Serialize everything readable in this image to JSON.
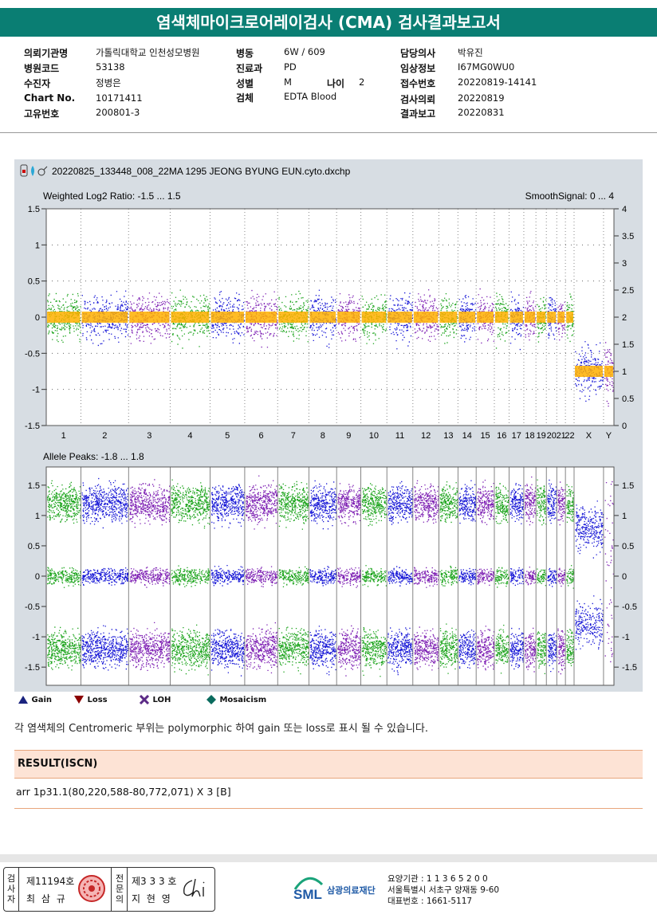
{
  "report_title": "염색체마이크로어레이검사 (CMA) 검사결과보고서",
  "info": {
    "col1": [
      {
        "label": "의뢰기관명",
        "value": "가톨릭대학교 인천성모병원"
      },
      {
        "label": "병원코드",
        "value": "53138"
      },
      {
        "label": "수진자",
        "value": "정병은"
      },
      {
        "label": "Chart No.",
        "value": "10171411"
      },
      {
        "label": "고유번호",
        "value": "200801-3"
      }
    ],
    "col2": [
      {
        "label": "병동",
        "value": "6W / 609"
      },
      {
        "label": "진료과",
        "value": "PD"
      },
      {
        "label": "성별",
        "value": "M"
      },
      {
        "label": "검체",
        "value": "EDTA Blood"
      }
    ],
    "age_label": "나이",
    "age_value": "2",
    "col3": [
      {
        "label": "담당의사",
        "value": "박유진"
      },
      {
        "label": "임상정보",
        "value": "I67MG0WU0"
      },
      {
        "label": "접수번호",
        "value": "20220819-14141"
      },
      {
        "label": "검사의뢰",
        "value": "20220819"
      },
      {
        "label": "결과보고",
        "value": "20220831"
      }
    ]
  },
  "chart_data": [
    {
      "type": "scatter",
      "file_name": "20220825_133448_008_22MA 1295 JEONG BYUNG EUN.cyto.dxchp",
      "title": "Weighted Log2 Ratio: -1.5 ... 1.5",
      "right_title": "SmoothSignal: 0 ... 4",
      "ylim": [
        -1.5,
        1.5
      ],
      "y2lim": [
        0,
        4
      ],
      "yticks": [
        "1.5",
        "1",
        "0.5",
        "0",
        "-0.5",
        "-1",
        "-1.5"
      ],
      "y2ticks": [
        "4",
        "3.5",
        "3",
        "2.5",
        "2",
        "1.5",
        "1",
        "0.5",
        "0"
      ],
      "categories": [
        "1",
        "2",
        "3",
        "4",
        "5",
        "6",
        "7",
        "8",
        "9",
        "10",
        "11",
        "12",
        "13",
        "14",
        "15",
        "16",
        "17",
        "18",
        "19",
        "20",
        "21",
        "22",
        "X",
        "Y"
      ],
      "smooth_signal_level": [
        2,
        2,
        2,
        2,
        2,
        2,
        2,
        2,
        2,
        2,
        2,
        2,
        2,
        2,
        2,
        2,
        2,
        2,
        2,
        2,
        2,
        2,
        1,
        1
      ],
      "colors": {
        "green": "#1aa31a",
        "blue": "#1515d6",
        "purple": "#7d1fb3",
        "orange": "#ffb000"
      }
    },
    {
      "type": "scatter",
      "title": "Allele Peaks: -1.8 ... 1.8",
      "ylim": [
        -1.8,
        1.8
      ],
      "yticks": [
        "1.5",
        "1",
        "0.5",
        "0",
        "-0.5",
        "-1",
        "-1.5"
      ],
      "y2ticks": [
        "1.5",
        "1",
        "0.5",
        "0",
        "-0.5",
        "-1",
        "-1.5"
      ],
      "peaks": [
        1.2,
        0,
        -1.2
      ]
    }
  ],
  "legend": [
    {
      "label": "Gain",
      "icon": "triangle-up-icon",
      "color": "#1a237e"
    },
    {
      "label": "Loss",
      "icon": "triangle-down-icon",
      "color": "#8b0000"
    },
    {
      "label": "LOH",
      "icon": "x-mark-icon",
      "color": "#5b2a86"
    },
    {
      "label": "Mosaicism",
      "icon": "diamond-icon",
      "color": "#0a6b5e"
    }
  ],
  "note": "각 염색체의 Centromeric 부위는 polymorphic 하여 gain 또는 loss로 표시 될 수 있습니다.",
  "result": {
    "heading": "RESULT(ISCN)",
    "value": "arr 1p31.1(80,220,588-80,772,071) X 3 [B]"
  },
  "signature": {
    "left_vertical": "검사자",
    "left_no": "제11194호",
    "left_name": "최 삼 규",
    "right_vertical": "전문의",
    "right_no": "제3 3 3 호",
    "right_name": "지 현 영"
  },
  "org": {
    "logo_text": "SML",
    "name": "삼광의료재단",
    "lines": [
      "요양기관 : 1 1 3 6 5 2 0 0",
      "서울특별시 서초구 양재동 9-60",
      "대표번호 : 1661-5117"
    ]
  }
}
